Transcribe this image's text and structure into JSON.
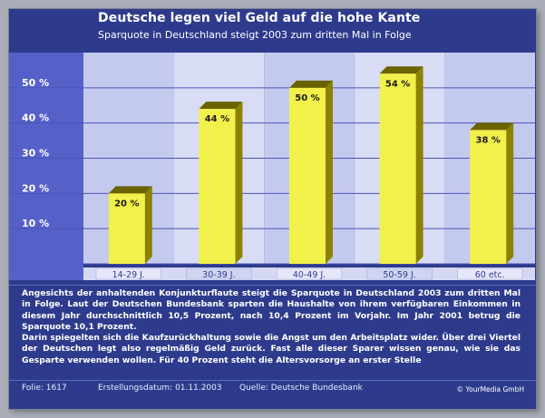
{
  "header": {
    "title": "Deutsche legen viel Geld auf die hohe Kante",
    "subtitle": "Sparquote in Deutschland steigt 2003 zum dritten Mal in Folge"
  },
  "chart_data": {
    "type": "bar",
    "categories": [
      "14-29 J.",
      "30-39 J.",
      "40-49 J.",
      "50-59 J.",
      "60 etc."
    ],
    "values": [
      20,
      44,
      50,
      54,
      38
    ],
    "value_labels": [
      "20 %",
      "44 %",
      "50 %",
      "54 %",
      "38 %"
    ],
    "y_ticks": [
      10,
      20,
      30,
      40,
      50
    ],
    "y_tick_labels": [
      "10 %",
      "20 %",
      "30 %",
      "40 %",
      "50 %"
    ],
    "ylim": [
      0,
      60
    ],
    "grid": true,
    "colors": {
      "bar_front": "#f2f04a",
      "bar_side": "#8c8200",
      "bar_top": "#6a6300",
      "plot_band_light": "#d8dcf4",
      "plot_band_dark": "#c4c9ee",
      "axis_panel": "#5561c9",
      "gridline": "#4b55b8"
    }
  },
  "description": {
    "paragraphs": [
      "Angesichts der anhaltenden Konjunkturflaute steigt die Sparquote in Deutschland 2003 zum dritten Mal in Folge. Laut der Deutschen Bundesbank sparten die Haushalte von ihrem verfügbaren Einkommen in diesem Jahr durchschnittlich 10,5 Prozent, nach 10,4 Prozent im Vorjahr. Im Jahr 2001 betrug die Sparquote 10,1 Prozent.",
      "Darin spiegelten sich die Kaufzurückhaltung sowie die Angst um den Arbeitsplatz wider. Über drei Viertel der Deutschen legt also regelmäßig Geld zurück. Fast alle dieser Sparer wissen genau, wie sie das Gesparte verwenden wollen. Für 40 Prozent steht die Altersvorsorge an erster Stelle"
    ]
  },
  "footer": {
    "folie": "Folie: 1617",
    "date": "Erstellungsdatum: 01.11.2003",
    "source": "Quelle: Deutsche Bundesbank",
    "credit": "© YourMedia GmbH"
  }
}
